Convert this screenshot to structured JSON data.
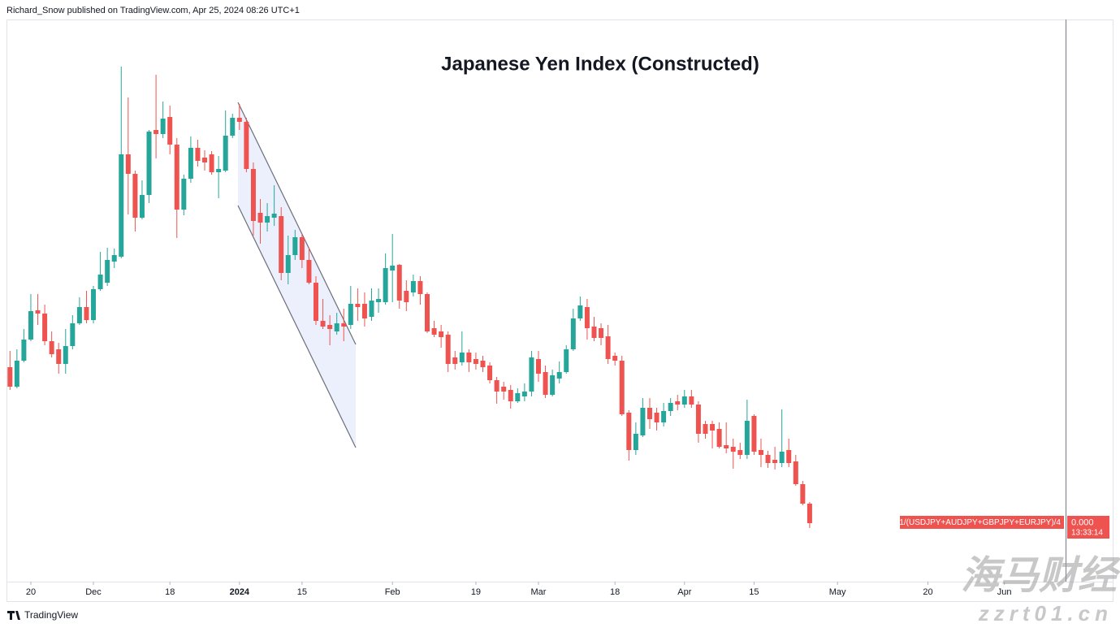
{
  "header": "Richard_Snow published on TradingView.com, Apr 25, 2024 08:26 UTC+1",
  "footer_brand": "TradingView",
  "watermark": {
    "title": "海马财经",
    "url": "zzrt01.cn"
  },
  "price_line": {
    "symbol": "1/(USDJPY+AUDJPY+GBPJPY+EURJPY)/4",
    "value": "0.000",
    "countdown": "13:33:14"
  },
  "chart_data": {
    "type": "candlestick",
    "title": "Japanese Yen Index (Constructed)",
    "up_color": "#26a69a",
    "down_color": "#ef5350",
    "ylim": [
      0,
      700
    ],
    "xlim": [
      -0.5,
      151.8
    ],
    "xticks": [
      {
        "value": 3,
        "label": "20"
      },
      {
        "value": 12,
        "label": "Dec"
      },
      {
        "value": 23,
        "label": "18"
      },
      {
        "value": 33,
        "label": "2024"
      },
      {
        "value": 42,
        "label": "15"
      },
      {
        "value": 55,
        "label": "Feb"
      },
      {
        "value": 67,
        "label": "19"
      },
      {
        "value": 76,
        "label": "Mar"
      },
      {
        "value": 87,
        "label": "18"
      },
      {
        "value": 97,
        "label": "Apr"
      },
      {
        "value": 107,
        "label": "15"
      },
      {
        "value": 119,
        "label": "May"
      },
      {
        "value": 132,
        "label": "20"
      },
      {
        "value": 143,
        "label": "Jun"
      }
    ],
    "ohlc": [
      [
        264,
        284,
        236,
        240
      ],
      [
        240,
        286,
        238,
        272
      ],
      [
        272,
        311,
        270,
        298
      ],
      [
        298,
        354,
        296,
        333
      ],
      [
        334,
        354,
        316,
        330
      ],
      [
        330,
        341,
        291,
        296
      ],
      [
        296,
        308,
        276,
        280
      ],
      [
        286,
        294,
        256,
        268
      ],
      [
        268,
        311,
        256,
        290
      ],
      [
        290,
        328,
        286,
        318
      ],
      [
        318,
        350,
        316,
        338
      ],
      [
        338,
        358,
        318,
        322
      ],
      [
        322,
        364,
        318,
        360
      ],
      [
        360,
        406,
        358,
        378
      ],
      [
        368,
        411,
        364,
        396
      ],
      [
        394,
        410,
        386,
        402
      ],
      [
        400,
        634,
        398,
        526
      ],
      [
        526,
        596,
        452,
        502
      ],
      [
        502,
        506,
        431,
        448
      ],
      [
        448,
        494,
        446,
        476
      ],
      [
        476,
        556,
        466,
        554
      ],
      [
        556,
        624,
        521,
        551
      ],
      [
        551,
        591,
        546,
        570
      ],
      [
        572,
        586,
        526,
        538
      ],
      [
        538,
        546,
        423,
        458
      ],
      [
        458,
        501,
        451,
        496
      ],
      [
        496,
        548,
        491,
        534
      ],
      [
        534,
        544,
        511,
        518
      ],
      [
        522,
        531,
        506,
        516
      ],
      [
        526,
        530,
        501,
        504
      ],
      [
        504,
        524,
        472,
        508
      ],
      [
        506,
        580,
        504,
        549
      ],
      [
        549,
        576,
        546,
        571
      ],
      [
        571,
        588,
        556,
        566
      ],
      [
        566,
        571,
        504,
        508
      ],
      [
        508,
        516,
        426,
        444
      ],
      [
        454,
        471,
        416,
        442
      ],
      [
        442,
        466,
        431,
        450
      ],
      [
        448,
        488,
        438,
        453
      ],
      [
        450,
        461,
        371,
        380
      ],
      [
        380,
        426,
        366,
        402
      ],
      [
        402,
        433,
        396,
        424
      ],
      [
        424,
        428,
        386,
        396
      ],
      [
        396,
        411,
        366,
        368
      ],
      [
        368,
        376,
        316,
        321
      ],
      [
        321,
        348,
        311,
        314
      ],
      [
        316,
        328,
        291,
        311
      ],
      [
        308,
        331,
        304,
        318
      ],
      [
        318,
        336,
        296,
        314
      ],
      [
        316,
        364,
        311,
        342
      ],
      [
        342,
        361,
        321,
        338
      ],
      [
        342,
        356,
        314,
        324
      ],
      [
        326,
        361,
        321,
        346
      ],
      [
        344,
        361,
        331,
        348
      ],
      [
        344,
        404,
        341,
        386
      ],
      [
        383,
        428,
        344,
        389
      ],
      [
        390,
        391,
        336,
        346
      ],
      [
        358,
        371,
        333,
        344
      ],
      [
        356,
        378,
        351,
        370
      ],
      [
        370,
        376,
        341,
        354
      ],
      [
        354,
        356,
        306,
        308
      ],
      [
        312,
        321,
        301,
        304
      ],
      [
        308,
        316,
        288,
        301
      ],
      [
        304,
        308,
        258,
        268
      ],
      [
        276,
        284,
        261,
        268
      ],
      [
        270,
        308,
        266,
        282
      ],
      [
        282,
        286,
        258,
        270
      ],
      [
        274,
        282,
        261,
        268
      ],
      [
        272,
        278,
        258,
        264
      ],
      [
        266,
        270,
        244,
        248
      ],
      [
        248,
        252,
        219,
        234
      ],
      [
        240,
        246,
        224,
        234
      ],
      [
        236,
        242,
        213,
        222
      ],
      [
        222,
        238,
        220,
        232
      ],
      [
        228,
        244,
        222,
        234
      ],
      [
        234,
        284,
        228,
        276
      ],
      [
        274,
        284,
        246,
        256
      ],
      [
        258,
        266,
        226,
        230
      ],
      [
        230,
        261,
        228,
        254
      ],
      [
        250,
        271,
        244,
        258
      ],
      [
        258,
        291,
        256,
        286
      ],
      [
        286,
        336,
        284,
        324
      ],
      [
        324,
        351,
        321,
        340
      ],
      [
        338,
        348,
        298,
        312
      ],
      [
        314,
        326,
        296,
        300
      ],
      [
        312,
        318,
        291,
        300
      ],
      [
        302,
        316,
        268,
        274
      ],
      [
        278,
        282,
        266,
        272
      ],
      [
        272,
        278,
        204,
        206
      ],
      [
        208,
        211,
        149,
        162
      ],
      [
        162,
        196,
        156,
        182
      ],
      [
        180,
        226,
        178,
        214
      ],
      [
        214,
        226,
        188,
        200
      ],
      [
        208,
        214,
        186,
        196
      ],
      [
        196,
        220,
        191,
        210
      ],
      [
        210,
        226,
        204,
        220
      ],
      [
        222,
        230,
        211,
        218
      ],
      [
        218,
        236,
        214,
        228
      ],
      [
        228,
        236,
        214,
        218
      ],
      [
        218,
        222,
        171,
        182
      ],
      [
        194,
        198,
        176,
        182
      ],
      [
        194,
        198,
        164,
        186
      ],
      [
        188,
        196,
        164,
        166
      ],
      [
        168,
        196,
        158,
        164
      ],
      [
        166,
        176,
        139,
        160
      ],
      [
        162,
        171,
        151,
        156
      ],
      [
        156,
        224,
        151,
        198
      ],
      [
        204,
        206,
        156,
        160
      ],
      [
        162,
        176,
        141,
        156
      ],
      [
        156,
        161,
        140,
        146
      ],
      [
        150,
        166,
        138,
        146
      ],
      [
        146,
        212,
        141,
        160
      ],
      [
        162,
        176,
        141,
        146
      ],
      [
        148,
        156,
        118,
        120
      ],
      [
        120,
        124,
        94,
        96
      ],
      [
        96,
        98,
        66,
        72
      ]
    ]
  }
}
